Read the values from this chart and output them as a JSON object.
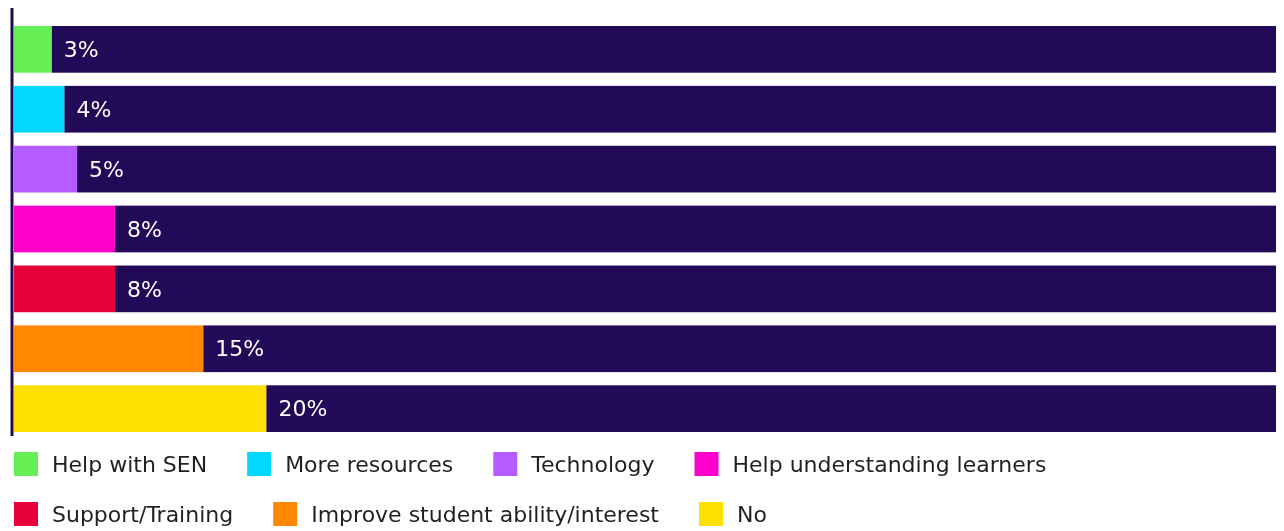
{
  "chart_data": {
    "type": "bar",
    "orientation": "horizontal",
    "stacked": true,
    "categories": [
      null,
      null,
      null,
      null,
      null,
      null,
      null
    ],
    "xlim": [
      0,
      100
    ],
    "tick_labels": false,
    "legend": "bottom",
    "series": [
      {
        "name": "Help with SEN",
        "color": "#66ee55",
        "values": [
          3,
          null,
          null,
          null,
          null,
          null,
          null
        ],
        "value_labels": [
          "3%",
          null,
          null,
          null,
          null,
          null,
          null
        ]
      },
      {
        "name": "More resources",
        "color": "#00d8ff",
        "values": [
          null,
          4,
          null,
          null,
          null,
          null,
          null
        ],
        "value_labels": [
          null,
          "4%",
          null,
          null,
          null,
          null,
          null
        ]
      },
      {
        "name": "Technology",
        "color": "#b45cff",
        "values": [
          null,
          null,
          5,
          null,
          null,
          null,
          null
        ],
        "value_labels": [
          null,
          null,
          "5%",
          null,
          null,
          null,
          null
        ]
      },
      {
        "name": "Help understanding learners",
        "color": "#ff00cc",
        "values": [
          null,
          null,
          null,
          8,
          null,
          null,
          null
        ],
        "value_labels": [
          null,
          null,
          null,
          "8%",
          null,
          null,
          null
        ]
      },
      {
        "name": "Support/Training",
        "color": "#e8003a",
        "values": [
          null,
          null,
          null,
          null,
          8,
          null,
          null
        ],
        "value_labels": [
          null,
          null,
          null,
          null,
          "8%",
          null,
          null
        ]
      },
      {
        "name": "Improve student ability/interest",
        "color": "#ff8800",
        "values": [
          null,
          null,
          null,
          null,
          null,
          15,
          null
        ],
        "value_labels": [
          null,
          null,
          null,
          null,
          null,
          "15%",
          null
        ]
      },
      {
        "name": "No",
        "color": "#ffe000",
        "values": [
          null,
          null,
          null,
          null,
          null,
          null,
          20
        ],
        "value_labels": [
          null,
          null,
          null,
          null,
          null,
          null,
          "20%"
        ]
      },
      {
        "color": "#230a59",
        "values": [
          97,
          96,
          95,
          92,
          92,
          85,
          80
        ]
      }
    ]
  }
}
